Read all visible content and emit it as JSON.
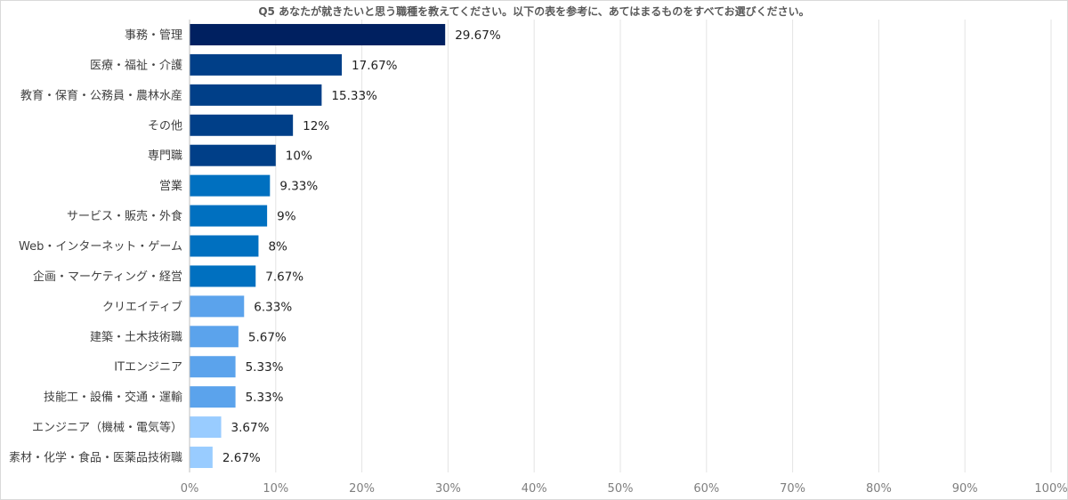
{
  "chart_data": {
    "type": "bar",
    "orientation": "horizontal",
    "title": "Q5 あなたが就きたいと思う職種を教えてください。以下の表を参考に、あてはまるものをすべてお選びください。",
    "categories": [
      "事務・管理",
      "医療・福祉・介護",
      "教育・保育・公務員・農林水産",
      "その他",
      "専門職",
      "営業",
      "サービス・販売・外食",
      "Web・インターネット・ゲーム",
      "企画・マーケティング・経営",
      "クリエイティブ",
      "建築・土木技術職",
      "ITエンジニア",
      "技能工・設備・交通・運輸",
      "エンジニア（機械・電気等）",
      "素材・化学・食品・医薬品技術職"
    ],
    "values": [
      29.67,
      17.67,
      15.33,
      12,
      10,
      9.33,
      9,
      8,
      7.67,
      6.33,
      5.67,
      5.33,
      5.33,
      3.67,
      2.67
    ],
    "value_labels": [
      "29.67%",
      "17.67%",
      "15.33%",
      "12%",
      "10%",
      "9.33%",
      "9%",
      "8%",
      "7.67%",
      "6.33%",
      "5.67%",
      "5.33%",
      "5.33%",
      "3.67%",
      "2.67%"
    ],
    "colors": [
      "#002060",
      "#003F88",
      "#003F88",
      "#003F88",
      "#003F88",
      "#0070C0",
      "#0070C0",
      "#0070C0",
      "#0070C0",
      "#5BA3EC",
      "#5BA3EC",
      "#5BA3EC",
      "#5BA3EC",
      "#99CCFF",
      "#99CCFF"
    ],
    "xlim": [
      0,
      100
    ],
    "xticks": [
      "0%",
      "10%",
      "20%",
      "30%",
      "40%",
      "50%",
      "60%",
      "70%",
      "80%",
      "90%",
      "100%"
    ],
    "grid": true,
    "legend": "none"
  }
}
